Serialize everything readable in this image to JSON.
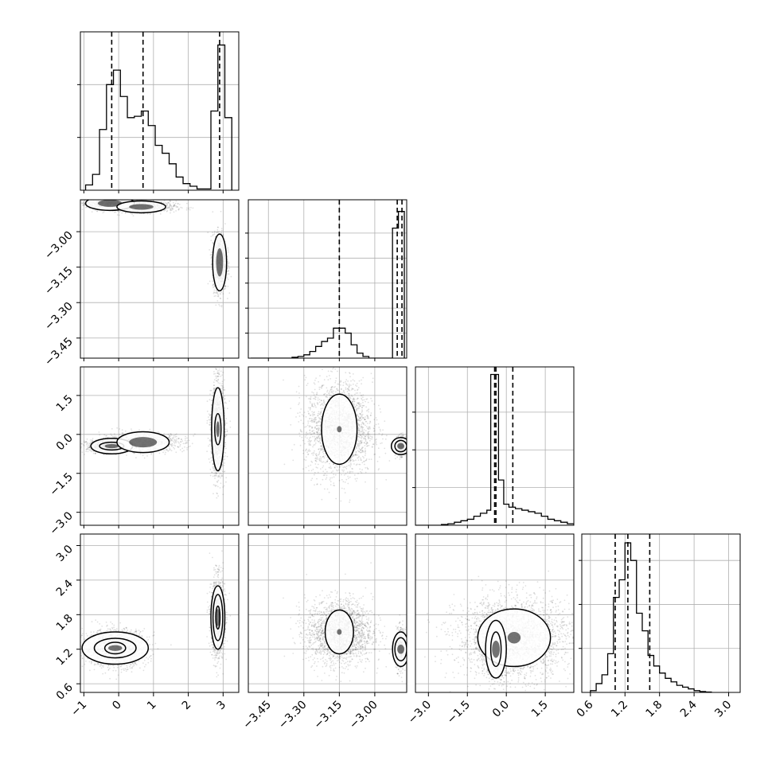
{
  "chart_data": {
    "type": "corner",
    "n_params": 4,
    "params": [
      {
        "name": "",
        "range": [
          -1.1,
          3.45
        ],
        "ticks": [
          -1,
          0,
          1,
          2,
          3
        ],
        "tick_labels": [
          "−1",
          "0",
          "1",
          "2",
          "3"
        ],
        "quantiles": [
          -0.2,
          0.7,
          2.9
        ],
        "hist_bins": [
          -0.95,
          -0.75,
          -0.55,
          -0.35,
          -0.15,
          0.05,
          0.25,
          0.45,
          0.65,
          0.85,
          1.05,
          1.25,
          1.45,
          1.65,
          1.85,
          2.05,
          2.25,
          2.45,
          2.65,
          2.85,
          3.05,
          3.25
        ],
        "hist_counts": [
          0.04,
          0.12,
          0.46,
          0.8,
          0.91,
          0.71,
          0.55,
          0.56,
          0.6,
          0.49,
          0.34,
          0.28,
          0.2,
          0.1,
          0.05,
          0.03,
          0.01,
          0.01,
          0.6,
          1.1,
          0.55
        ],
        "hist_ylim": [
          0,
          1.2
        ],
        "hist_yticks": [
          0.4,
          0.8
        ]
      },
      {
        "name": "",
        "range": [
          -3.535,
          -2.865
        ],
        "ticks": [
          -3.45,
          -3.3,
          -3.15,
          -3.0
        ],
        "tick_labels": [
          "−3.45",
          "−3.30",
          "−3.15",
          "−3.00"
        ],
        "quantiles": [
          -3.15,
          -2.905,
          -2.885
        ],
        "hist_bins": [
          -3.525,
          -3.5,
          -3.475,
          -3.45,
          -3.425,
          -3.4,
          -3.375,
          -3.35,
          -3.325,
          -3.3,
          -3.275,
          -3.25,
          -3.225,
          -3.2,
          -3.175,
          -3.15,
          -3.125,
          -3.1,
          -3.075,
          -3.05,
          -3.025,
          -3.0,
          -2.975,
          -2.95,
          -2.925,
          -2.9,
          -2.875
        ],
        "hist_counts": [
          0,
          0,
          0,
          0,
          0,
          0,
          0,
          0.005,
          0.01,
          0.02,
          0.04,
          0.07,
          0.1,
          0.12,
          0.18,
          0.18,
          0.15,
          0.08,
          0.03,
          0.01,
          0,
          0,
          0,
          0,
          0.78,
          0.88
        ],
        "hist_ylim": [
          0,
          0.95
        ],
        "hist_yticks": [
          0.15,
          0.3,
          0.45,
          0.6,
          0.75
        ]
      },
      {
        "name": "",
        "range": [
          -3.5,
          2.6
        ],
        "ticks": [
          -3.0,
          -1.5,
          0.0,
          1.5
        ],
        "tick_labels": [
          "−3.0",
          "−1.5",
          "0.0",
          "1.5"
        ],
        "quantiles": [
          -0.45,
          -0.4,
          0.25
        ],
        "hist_bins": [
          -3.5,
          -3.25,
          -3.0,
          -2.75,
          -2.5,
          -2.25,
          -2.0,
          -1.75,
          -1.5,
          -1.25,
          -1.0,
          -0.75,
          -0.6,
          -0.3,
          -0.1,
          0.1,
          0.35,
          0.6,
          0.85,
          1.1,
          1.35,
          1.6,
          1.85,
          2.1,
          2.35,
          2.6
        ],
        "hist_counts": [
          0,
          0,
          0,
          0,
          0.005,
          0.01,
          0.02,
          0.03,
          0.04,
          0.06,
          0.08,
          0.1,
          1.0,
          0.3,
          0.14,
          0.12,
          0.11,
          0.1,
          0.09,
          0.08,
          0.06,
          0.04,
          0.03,
          0.02,
          0.01
        ],
        "hist_ylim": [
          0,
          1.05
        ],
        "hist_yticks": [
          0.25,
          0.5,
          0.75
        ]
      },
      {
        "name": "",
        "range": [
          0.45,
          3.2
        ],
        "ticks": [
          0.6,
          1.2,
          1.8,
          2.4,
          3.0
        ],
        "tick_labels": [
          "0.6",
          "1.2",
          "1.8",
          "2.4",
          "3.0"
        ],
        "quantiles": [
          1.03,
          1.25,
          1.63
        ],
        "hist_bins": [
          0.6,
          0.7,
          0.8,
          0.9,
          1.0,
          1.1,
          1.2,
          1.3,
          1.4,
          1.5,
          1.6,
          1.7,
          1.8,
          1.9,
          2.0,
          2.1,
          2.2,
          2.3,
          2.4,
          2.5,
          2.6,
          2.7
        ],
        "hist_counts": [
          0.01,
          0.05,
          0.1,
          0.22,
          0.54,
          0.64,
          0.85,
          0.75,
          0.45,
          0.35,
          0.21,
          0.15,
          0.11,
          0.08,
          0.06,
          0.04,
          0.03,
          0.02,
          0.01,
          0.005,
          0.002
        ],
        "hist_ylim": [
          0,
          0.9
        ],
        "hist_yticks": [
          0.25,
          0.5,
          0.75
        ]
      }
    ],
    "clusters": {
      "0-1": [
        {
          "cx": -0.25,
          "cy": -2.88,
          "sx": 0.35,
          "sy": 0.01,
          "n": 900,
          "contours": [
            [
              0.7,
              0.03
            ]
          ],
          "core": [
            0.35,
            0.015
          ]
        },
        {
          "cx": 0.65,
          "cy": -2.895,
          "sx": 0.5,
          "sy": 0.012,
          "n": 700,
          "contours": [
            [
              0.7,
              0.025
            ]
          ],
          "core": [
            0.35,
            0.012
          ]
        },
        {
          "cx": 2.9,
          "cy": -3.13,
          "sx": 0.1,
          "sy": 0.06,
          "n": 1100,
          "contours": [
            [
              0.2,
              0.12
            ]
          ],
          "core": [
            0.1,
            0.06
          ]
        }
      ],
      "0-2": [
        {
          "cx": -0.2,
          "cy": -0.45,
          "sx": 0.35,
          "sy": 0.12,
          "n": 1100,
          "contours": [
            [
              0.6,
              0.3
            ],
            [
              0.35,
              0.15
            ]
          ],
          "core": [
            0.2,
            0.08
          ]
        },
        {
          "cx": 0.7,
          "cy": -0.3,
          "sx": 0.6,
          "sy": 0.18,
          "n": 800,
          "contours": [
            [
              0.75,
              0.4
            ]
          ],
          "core": [
            0.4,
            0.2
          ]
        },
        {
          "cx": 2.85,
          "cy": 0.2,
          "sx": 0.1,
          "sy": 0.9,
          "n": 1400,
          "contours": [
            [
              0.18,
              1.6
            ],
            [
              0.09,
              0.6
            ]
          ],
          "core": [
            0.05,
            0.3
          ]
        }
      ],
      "0-3": [
        {
          "cx": -0.1,
          "cy": 1.22,
          "sx": 0.45,
          "sy": 0.16,
          "n": 1300,
          "contours": [
            [
              0.95,
              0.28
            ],
            [
              0.6,
              0.17
            ],
            [
              0.3,
              0.1
            ]
          ],
          "core": [
            0.2,
            0.05
          ]
        },
        {
          "cx": 2.85,
          "cy": 1.75,
          "sx": 0.1,
          "sy": 0.35,
          "n": 1100,
          "contours": [
            [
              0.2,
              0.55
            ],
            [
              0.14,
              0.4
            ],
            [
              0.06,
              0.2
            ]
          ],
          "core": [
            0.05,
            0.15
          ]
        }
      ],
      "1-2": [
        {
          "cx": -3.15,
          "cy": 0.2,
          "sx": 0.07,
          "sy": 0.9,
          "n": 2200,
          "contours": [
            [
              0.075,
              1.35
            ]
          ],
          "core": [
            0.01,
            0.12
          ]
        },
        {
          "cx": -2.89,
          "cy": -0.45,
          "sx": 0.01,
          "sy": 0.18,
          "n": 500,
          "contours": [
            [
              0.04,
              0.33
            ],
            [
              0.025,
              0.22
            ]
          ],
          "core": [
            0.015,
            0.12
          ]
        }
      ],
      "1-3": [
        {
          "cx": -3.15,
          "cy": 1.5,
          "sx": 0.07,
          "sy": 0.28,
          "n": 2000,
          "contours": [
            [
              0.06,
              0.38
            ]
          ],
          "core": [
            0.01,
            0.05
          ]
        },
        {
          "cx": -2.89,
          "cy": 1.2,
          "sx": 0.01,
          "sy": 0.18,
          "n": 500,
          "contours": [
            [
              0.035,
              0.3
            ],
            [
              0.025,
              0.2
            ]
          ],
          "core": [
            0.015,
            0.08
          ]
        }
      ],
      "2-3": [
        {
          "cx": 0.3,
          "cy": 1.4,
          "sx": 1.1,
          "sy": 0.35,
          "n": 2400,
          "contours": [
            [
              1.4,
              0.5
            ]
          ],
          "core": [
            0.25,
            0.1
          ]
        },
        {
          "cx": -0.4,
          "cy": 1.2,
          "sx": 0.2,
          "sy": 0.25,
          "n": 700,
          "contours": [
            [
              0.4,
              0.5
            ],
            [
              0.2,
              0.3
            ]
          ],
          "core": [
            0.15,
            0.15
          ]
        }
      ]
    }
  }
}
